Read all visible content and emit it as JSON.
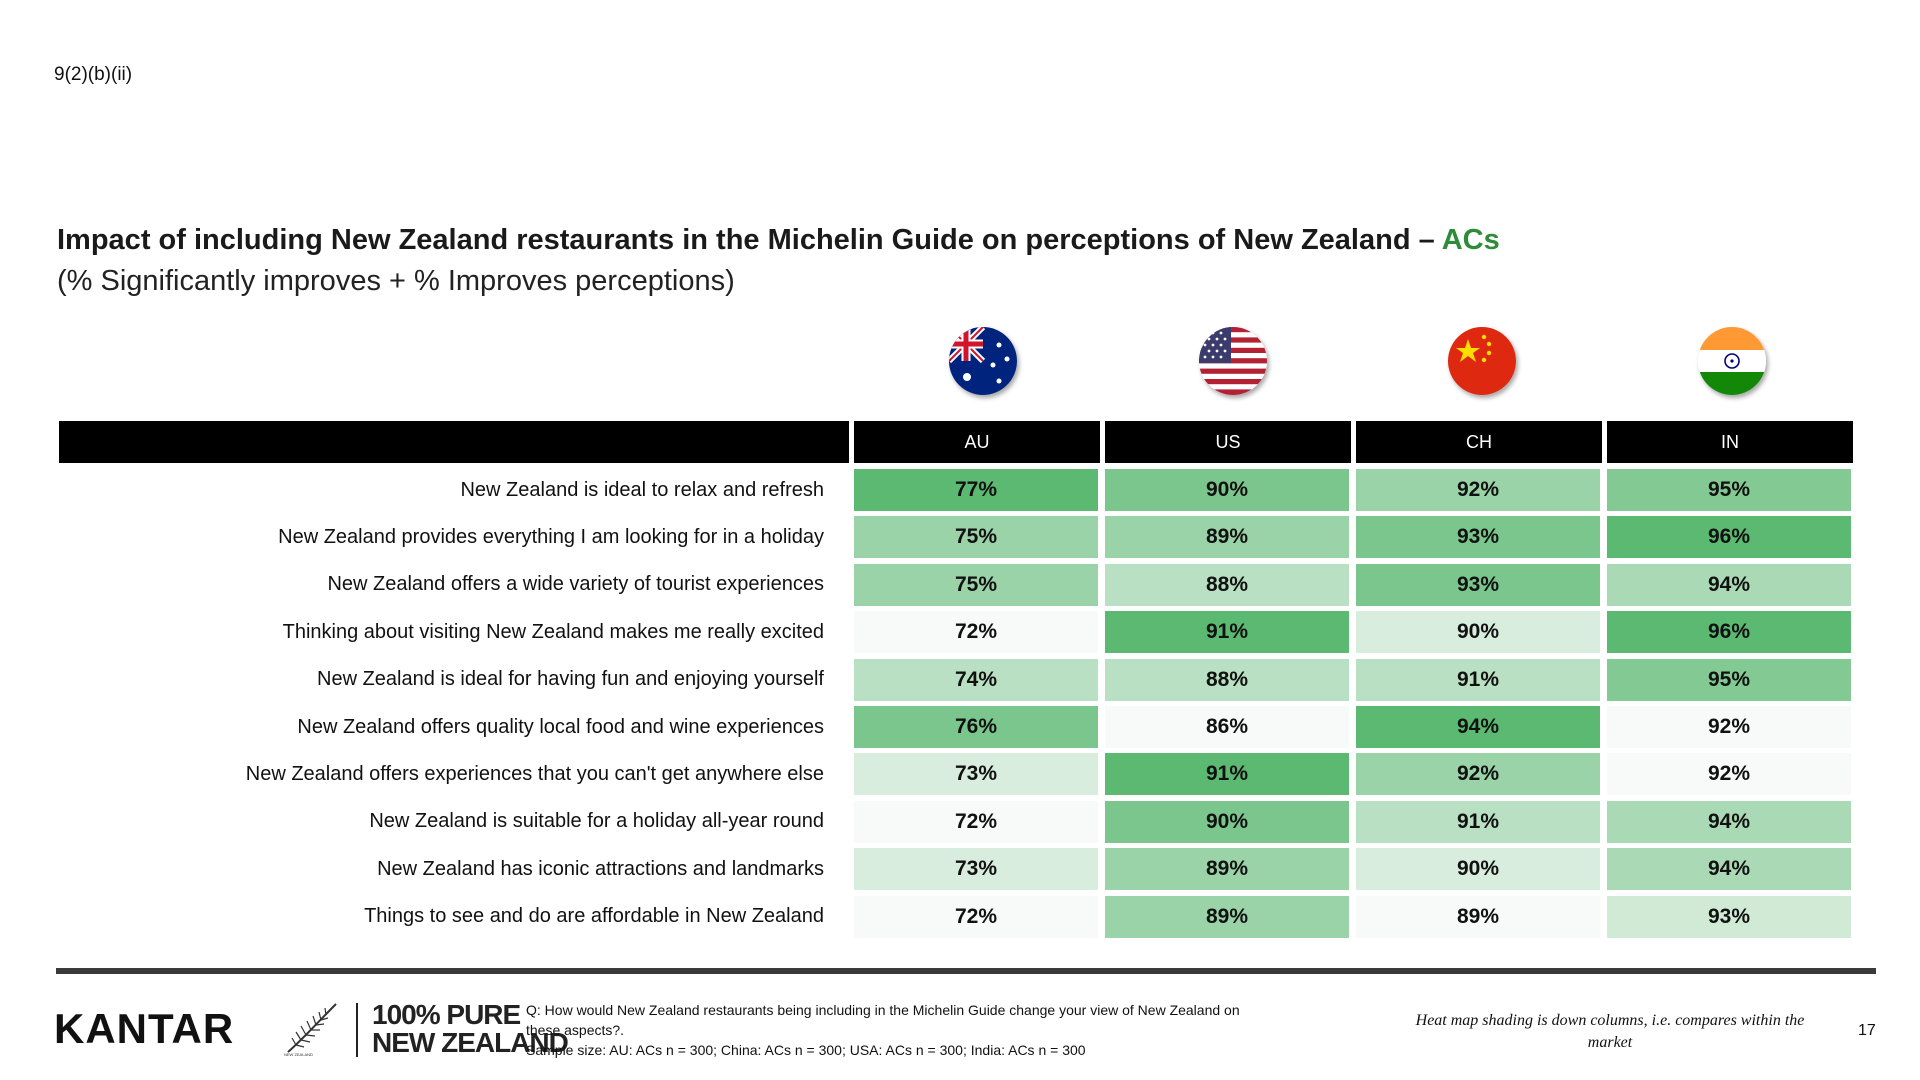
{
  "ref_code": "9(2)(b)(ii)",
  "title_main": "Impact of including New Zealand restaurants in the Michelin Guide on perceptions of New Zealand –",
  "title_highlight": "ACs",
  "subtitle": "(% Significantly improves + % Improves perceptions)",
  "flags": [
    "australia-flag-icon",
    "usa-flag-icon",
    "china-flag-icon",
    "india-flag-icon"
  ],
  "colors": {
    "accent_green": "#2e8b3a",
    "header_bg": "#000000",
    "heat_low": "#f7faf8",
    "heat_high": "#5cb971"
  },
  "chart_data": {
    "type": "table",
    "columns": [
      "AU",
      "US",
      "CH",
      "IN"
    ],
    "rows": [
      {
        "label": "New Zealand is ideal to relax and refresh",
        "values": [
          "77%",
          "90%",
          "92%",
          "95%"
        ]
      },
      {
        "label": "New Zealand provides everything I am looking for in a holiday",
        "values": [
          "75%",
          "89%",
          "93%",
          "96%"
        ]
      },
      {
        "label": "New Zealand offers a wide variety of tourist experiences",
        "values": [
          "75%",
          "88%",
          "93%",
          "94%"
        ]
      },
      {
        "label": "Thinking about visiting New Zealand makes me really excited",
        "values": [
          "72%",
          "91%",
          "90%",
          "96%"
        ]
      },
      {
        "label": "New Zealand is ideal for having fun and enjoying yourself",
        "values": [
          "74%",
          "88%",
          "91%",
          "95%"
        ]
      },
      {
        "label": "New Zealand offers quality local food and wine experiences",
        "values": [
          "76%",
          "86%",
          "94%",
          "92%"
        ]
      },
      {
        "label": "New Zealand offers experiences that you can't get anywhere else",
        "values": [
          "73%",
          "91%",
          "92%",
          "92%"
        ]
      },
      {
        "label": "New Zealand is suitable for a holiday all-year round",
        "values": [
          "72%",
          "90%",
          "91%",
          "94%"
        ]
      },
      {
        "label": "New Zealand has iconic attractions and landmarks",
        "values": [
          "73%",
          "89%",
          "90%",
          "94%"
        ]
      },
      {
        "label": "Things to see and do are affordable in New Zealand",
        "values": [
          "72%",
          "89%",
          "89%",
          "93%"
        ]
      }
    ]
  },
  "footer": {
    "kantar": "KANTAR",
    "pure_line1": "100% PURE",
    "pure_line2": "NEW ZEALAND",
    "question": "Q: How would New Zealand restaurants being including in the Michelin Guide change your view of New Zealand on these aspects?.",
    "sample": "Sample size: AU: ACs n = 300; China: ACs n = 300; USA: ACs n = 300; India: ACs n = 300",
    "heat_note": "Heat map shading is down columns, i.e. compares within the market",
    "page_number": "17"
  }
}
